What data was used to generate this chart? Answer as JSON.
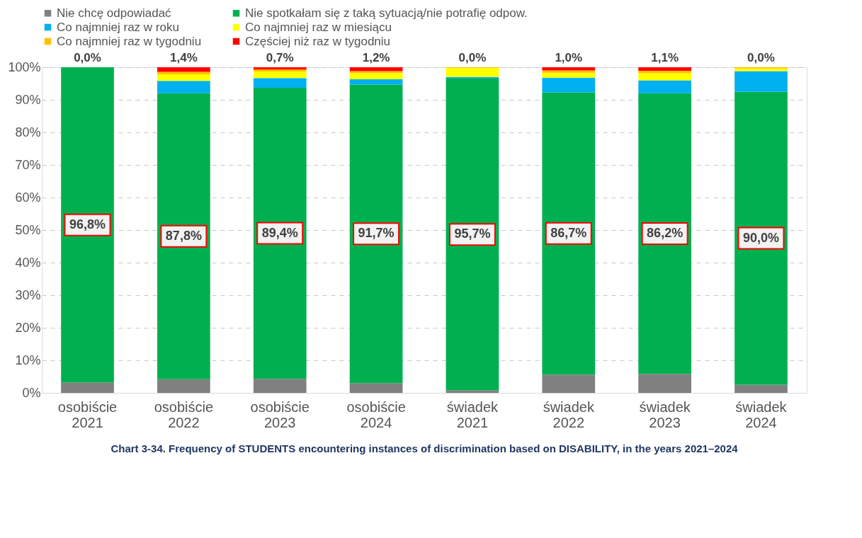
{
  "chart_data": {
    "type": "bar",
    "stacked": true,
    "title": "Chart 3-34. Frequency of STUDENTS encountering instances of discrimination based on DISABILITY, in the years 2021–2024",
    "categories": [
      "osobiście\n2021",
      "osobiście\n2022",
      "osobiście\n2023",
      "osobiście\n2024",
      "świadek\n2021",
      "świadek\n2022",
      "świadek\n2023",
      "świadek\n2024"
    ],
    "series": [
      {
        "name": "Nie chcę odpowiadać",
        "color": "#808080",
        "values": [
          3.2,
          4.2,
          4.3,
          3.0,
          0.8,
          5.6,
          5.8,
          2.5
        ]
      },
      {
        "name": "Nie spotkałam się z taką sytuacją/nie potrafię odpow.",
        "color": "#00b050",
        "values": [
          96.8,
          87.8,
          89.4,
          91.7,
          95.7,
          86.7,
          86.2,
          90.0
        ],
        "value_labels": [
          "96,8%",
          "87,8%",
          "89,4%",
          "91,7%",
          "95,7%",
          "86,7%",
          "86,2%",
          "90,0%"
        ]
      },
      {
        "name": "Co najmniej raz w roku",
        "color": "#00b0f0",
        "values": [
          0,
          3.8,
          3.0,
          1.6,
          0.5,
          4.5,
          4.0,
          6.3
        ]
      },
      {
        "name": "Co najmniej raz w miesiącu",
        "color": "#ffff00",
        "values": [
          0,
          2.0,
          2.0,
          1.9,
          2.8,
          1.5,
          2.2,
          0.8
        ]
      },
      {
        "name": "Co najmniej raz w tygodniu",
        "color": "#ffc000",
        "values": [
          0,
          0.8,
          0.6,
          0.6,
          0.2,
          0.7,
          0.7,
          0.4
        ]
      },
      {
        "name": "Częściej niż raz w tygodniu",
        "color": "#ff0000",
        "values": [
          0,
          1.4,
          0.7,
          1.2,
          0,
          1.0,
          1.1,
          0
        ],
        "value_labels": [
          "0,0%",
          "1,4%",
          "0,7%",
          "1,2%",
          "0,0%",
          "1,0%",
          "1,1%",
          "0,0%"
        ]
      }
    ],
    "ylim": [
      0,
      100
    ],
    "yticks": [
      {
        "value": 0,
        "label": "0%"
      },
      {
        "value": 10,
        "label": "10%"
      },
      {
        "value": 20,
        "label": "20%"
      },
      {
        "value": 30,
        "label": "30%"
      },
      {
        "value": 40,
        "label": "40%"
      },
      {
        "value": 50,
        "label": "50%"
      },
      {
        "value": 60,
        "label": "60%"
      },
      {
        "value": 70,
        "label": "70%"
      },
      {
        "value": 80,
        "label": "80%"
      },
      {
        "value": 90,
        "label": "90%"
      },
      {
        "value": 100,
        "label": "100%"
      }
    ],
    "grid": "y",
    "legend": "top"
  }
}
